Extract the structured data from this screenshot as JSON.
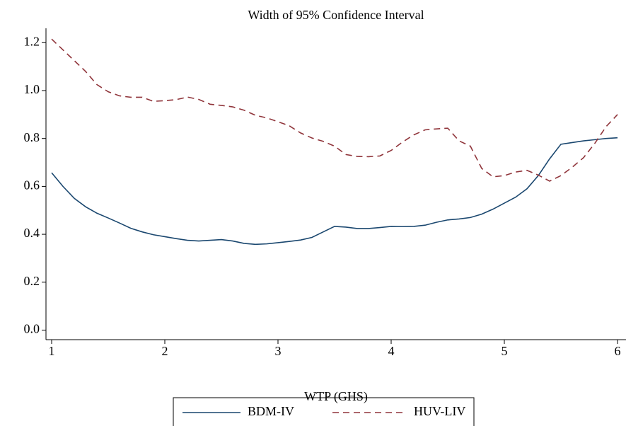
{
  "chart_data": {
    "type": "line",
    "title": "Width of 95% Confidence Interval",
    "x_label": "WTP (GHS)",
    "x": [
      1.0,
      1.1,
      1.2,
      1.3,
      1.4,
      1.5,
      1.6,
      1.7,
      1.8,
      1.9,
      2.0,
      2.1,
      2.2,
      2.3,
      2.4,
      2.5,
      2.6,
      2.7,
      2.8,
      2.9,
      3.0,
      3.1,
      3.2,
      3.3,
      3.4,
      3.5,
      3.6,
      3.7,
      3.8,
      3.9,
      4.0,
      4.1,
      4.2,
      4.3,
      4.4,
      4.5,
      4.6,
      4.7,
      4.8,
      4.9,
      5.0,
      5.1,
      5.2,
      5.3,
      5.4,
      5.5,
      5.6,
      5.7,
      5.8,
      5.9,
      6.0
    ],
    "series": [
      {
        "name": "BDM-IV",
        "color": "#1a476f",
        "dash": false,
        "values": [
          0.657,
          0.6,
          0.55,
          0.515,
          0.488,
          0.468,
          0.447,
          0.425,
          0.41,
          0.398,
          0.39,
          0.382,
          0.375,
          0.372,
          0.375,
          0.378,
          0.372,
          0.362,
          0.358,
          0.36,
          0.365,
          0.37,
          0.376,
          0.387,
          0.41,
          0.433,
          0.43,
          0.424,
          0.424,
          0.428,
          0.433,
          0.432,
          0.433,
          0.438,
          0.45,
          0.46,
          0.464,
          0.47,
          0.484,
          0.505,
          0.53,
          0.555,
          0.59,
          0.645,
          0.715,
          0.776,
          0.783,
          0.79,
          0.795,
          0.8,
          0.803
        ]
      },
      {
        "name": "HUV-LIV",
        "color": "#90353b",
        "dash": true,
        "values": [
          1.215,
          1.17,
          1.125,
          1.08,
          1.025,
          0.995,
          0.978,
          0.972,
          0.972,
          0.955,
          0.958,
          0.962,
          0.973,
          0.963,
          0.943,
          0.938,
          0.932,
          0.918,
          0.897,
          0.886,
          0.87,
          0.853,
          0.823,
          0.802,
          0.788,
          0.768,
          0.733,
          0.725,
          0.724,
          0.727,
          0.75,
          0.785,
          0.815,
          0.836,
          0.84,
          0.843,
          0.79,
          0.768,
          0.675,
          0.64,
          0.645,
          0.66,
          0.667,
          0.647,
          0.622,
          0.645,
          0.68,
          0.72,
          0.78,
          0.85,
          0.9
        ]
      }
    ],
    "xlim": [
      0.95,
      6.075
    ],
    "xticks": [
      1,
      2,
      3,
      4,
      5,
      6
    ],
    "ylim": [
      -0.04,
      1.26
    ],
    "yticks": [
      {
        "value": 0,
        "label": "0.0"
      },
      0.2,
      0.4,
      0.6,
      0.8,
      {
        "value": 1,
        "label": "1.0"
      },
      1.2
    ],
    "grid": false
  }
}
